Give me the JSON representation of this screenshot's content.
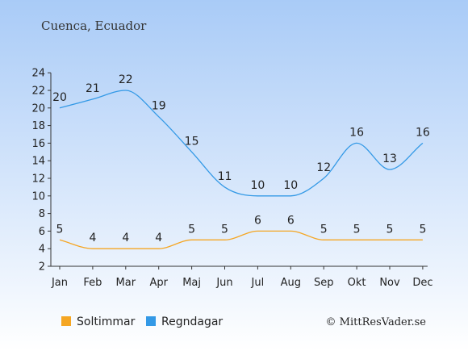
{
  "colors": {
    "bg_top": "#a9cbf7",
    "bg_bottom": "#ffffff",
    "sun": "#f5a623",
    "rain": "#3399e6",
    "axis": "#333333",
    "text": "#222222"
  },
  "chart_data": {
    "type": "line",
    "title": "Cuenca, Ecuador",
    "categories": [
      "Jan",
      "Feb",
      "Mar",
      "Apr",
      "Maj",
      "Jun",
      "Jul",
      "Aug",
      "Sep",
      "Okt",
      "Nov",
      "Dec"
    ],
    "series": [
      {
        "name": "Soltimmar",
        "color": "#f5a623",
        "values": [
          5,
          4,
          4,
          4,
          5,
          5,
          6,
          6,
          5,
          5,
          5,
          5
        ]
      },
      {
        "name": "Regndagar",
        "color": "#3399e6",
        "values": [
          20,
          21,
          22,
          19,
          15,
          11,
          10,
          10,
          12,
          16,
          13,
          16
        ]
      }
    ],
    "y_ticks": [
      "2",
      "4",
      "6",
      "8",
      "10",
      "12",
      "14",
      "16",
      "18",
      "20",
      "22",
      "24"
    ],
    "ylim": [
      2,
      24
    ],
    "grid": false,
    "legend_position": "bottom-left",
    "credit": "© MittResVader.se"
  }
}
